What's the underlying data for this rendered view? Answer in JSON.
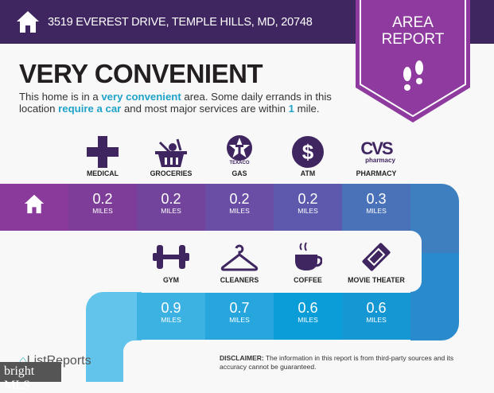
{
  "header": {
    "address": "3519 EVEREST DRIVE, TEMPLE HILLS, MD, 20748",
    "icon": "home-icon",
    "badge_line1": "AREA",
    "badge_line2": "REPORT",
    "badge_icon": "footprints-icon",
    "color": "#3f2660",
    "badge_color": "#8e3a9e"
  },
  "title": "VERY CONVENIENT",
  "summary": {
    "p1": "This home is in a ",
    "h1": "very convenient",
    "p2": " area. Some daily errands in this location ",
    "h2": "require a car",
    "p3": " and most major services are within ",
    "h3": "1",
    "p4": " mile."
  },
  "unit": "MILES",
  "row1": [
    {
      "label": "MEDICAL",
      "distance": "0.2",
      "icon": "medical-cross-icon",
      "color": "#7e3d98"
    },
    {
      "label": "GROCERIES",
      "distance": "0.2",
      "icon": "grocery-basket-icon",
      "color": "#73449c"
    },
    {
      "label": "GAS",
      "distance": "0.2",
      "icon": "texaco-icon",
      "icon_text": "TEXACO",
      "color": "#6a4ea5"
    },
    {
      "label": "ATM",
      "distance": "0.2",
      "icon": "dollar-icon",
      "color": "#5d5aad"
    },
    {
      "label": "PHARMACY",
      "distance": "0.3",
      "icon": "cvs-pharmacy-icon",
      "icon_text": "CVS",
      "icon_subtext": "pharmacy",
      "color": "#4a72b9"
    }
  ],
  "row2": [
    {
      "label": "GYM",
      "distance": "0.9",
      "icon": "dumbbell-icon",
      "color": "#3cb2e2"
    },
    {
      "label": "CLEANERS",
      "distance": "0.7",
      "icon": "hanger-icon",
      "color": "#27a6dd"
    },
    {
      "label": "COFFEE",
      "distance": "0.6",
      "icon": "coffee-cup-icon",
      "color": "#0a9dd7"
    },
    {
      "label": "MOVIE THEATER",
      "distance": "0.6",
      "icon": "movie-ticket-icon",
      "color": "#1497d2"
    }
  ],
  "footer": {
    "brand": "ListReports",
    "disclaimer_label": "DISCLAIMER:",
    "disclaimer": " The information in this report is from third-party sources and its accuracy cannot be guaranteed.",
    "watermark": "bright MLS"
  }
}
